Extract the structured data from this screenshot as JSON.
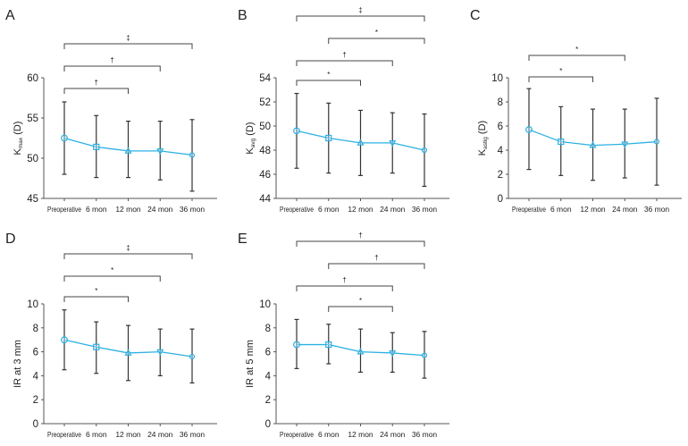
{
  "colors": {
    "line": "#2bb0e3",
    "axis": "#555555",
    "errorbar": "#333333",
    "bracket": "#444444"
  },
  "chart_data": [
    {
      "panel": "A",
      "type": "line",
      "categories": [
        "Preoperative",
        "6 mon",
        "12 mon",
        "24 mon",
        "36 mon"
      ],
      "ylabel": {
        "main": "K",
        "sub": "max",
        "suffix": " (D)"
      },
      "ylim": [
        45,
        60
      ],
      "yticks": [
        45,
        50,
        55,
        60
      ],
      "mean": [
        52.5,
        51.4,
        50.9,
        50.9,
        50.4
      ],
      "upper": [
        57.0,
        55.3,
        54.6,
        54.6,
        54.8
      ],
      "lower": [
        48.0,
        47.6,
        47.6,
        47.3,
        45.9
      ],
      "brackets": [
        {
          "from": 0,
          "to": 4,
          "symbol": "‡"
        },
        {
          "from": 0,
          "to": 3,
          "symbol": "†"
        },
        {
          "from": 0,
          "to": 2,
          "symbol": "†"
        }
      ]
    },
    {
      "panel": "B",
      "type": "line",
      "categories": [
        "Preoperative",
        "6 mon",
        "12 mon",
        "24 mon",
        "36 mon"
      ],
      "ylabel": {
        "main": "K",
        "sub": "avg",
        "suffix": " (D)"
      },
      "ylim": [
        44,
        54
      ],
      "yticks": [
        44,
        46,
        48,
        50,
        52,
        54
      ],
      "mean": [
        49.6,
        49.0,
        48.6,
        48.6,
        48.0
      ],
      "upper": [
        52.7,
        51.9,
        51.3,
        51.1,
        51.0
      ],
      "lower": [
        46.5,
        46.1,
        45.9,
        46.1,
        45.0
      ],
      "brackets": [
        {
          "from": 0,
          "to": 4,
          "symbol": "‡"
        },
        {
          "from": 1,
          "to": 4,
          "symbol": "*"
        },
        {
          "from": 0,
          "to": 3,
          "symbol": "†"
        },
        {
          "from": 0,
          "to": 2,
          "symbol": "*"
        }
      ]
    },
    {
      "panel": "C",
      "type": "line",
      "categories": [
        "Preoperative",
        "6 mon",
        "12 mon",
        "24 mon",
        "36 mon"
      ],
      "ylabel": {
        "main": "K",
        "sub": "astig",
        "suffix": " (D)"
      },
      "ylim": [
        0,
        10
      ],
      "yticks": [
        0,
        2,
        4,
        6,
        8,
        10
      ],
      "mean": [
        5.7,
        4.7,
        4.4,
        4.5,
        4.7
      ],
      "upper": [
        9.1,
        7.6,
        7.4,
        7.4,
        8.3
      ],
      "lower": [
        2.4,
        1.9,
        1.5,
        1.7,
        1.1
      ],
      "brackets": [
        {
          "from": 0,
          "to": 3,
          "symbol": "*"
        },
        {
          "from": 0,
          "to": 2,
          "symbol": "*"
        }
      ]
    },
    {
      "panel": "D",
      "type": "line",
      "categories": [
        "Preoperative",
        "6 mon",
        "12 mon",
        "24 mon",
        "36 mon"
      ],
      "ylabel": {
        "main": "IR at 3 mm",
        "sub": "",
        "suffix": ""
      },
      "ylim": [
        0,
        10
      ],
      "yticks": [
        0,
        2,
        4,
        6,
        8,
        10
      ],
      "mean": [
        7.0,
        6.4,
        5.9,
        6.0,
        5.6
      ],
      "upper": [
        9.5,
        8.5,
        8.2,
        7.9,
        7.9
      ],
      "lower": [
        4.5,
        4.2,
        3.6,
        4.0,
        3.4
      ],
      "brackets": [
        {
          "from": 0,
          "to": 4,
          "symbol": "‡"
        },
        {
          "from": 0,
          "to": 3,
          "symbol": "*"
        },
        {
          "from": 0,
          "to": 2,
          "symbol": "*"
        }
      ]
    },
    {
      "panel": "E",
      "type": "line",
      "categories": [
        "Preoperative",
        "6 mon",
        "12 mon",
        "24 mon",
        "36 mon"
      ],
      "ylabel": {
        "main": "IR at 5 mm",
        "sub": "",
        "suffix": ""
      },
      "ylim": [
        0,
        10
      ],
      "yticks": [
        0,
        2,
        4,
        6,
        8,
        10
      ],
      "mean": [
        6.6,
        6.6,
        6.0,
        5.9,
        5.7
      ],
      "upper": [
        8.7,
        8.3,
        7.9,
        7.6,
        7.7
      ],
      "lower": [
        4.6,
        5.0,
        4.3,
        4.3,
        3.8
      ],
      "brackets": [
        {
          "from": 0,
          "to": 4,
          "symbol": "†"
        },
        {
          "from": 1,
          "to": 4,
          "symbol": "†"
        },
        {
          "from": 0,
          "to": 3,
          "symbol": "†"
        },
        {
          "from": 1,
          "to": 3,
          "symbol": "*"
        }
      ]
    }
  ]
}
